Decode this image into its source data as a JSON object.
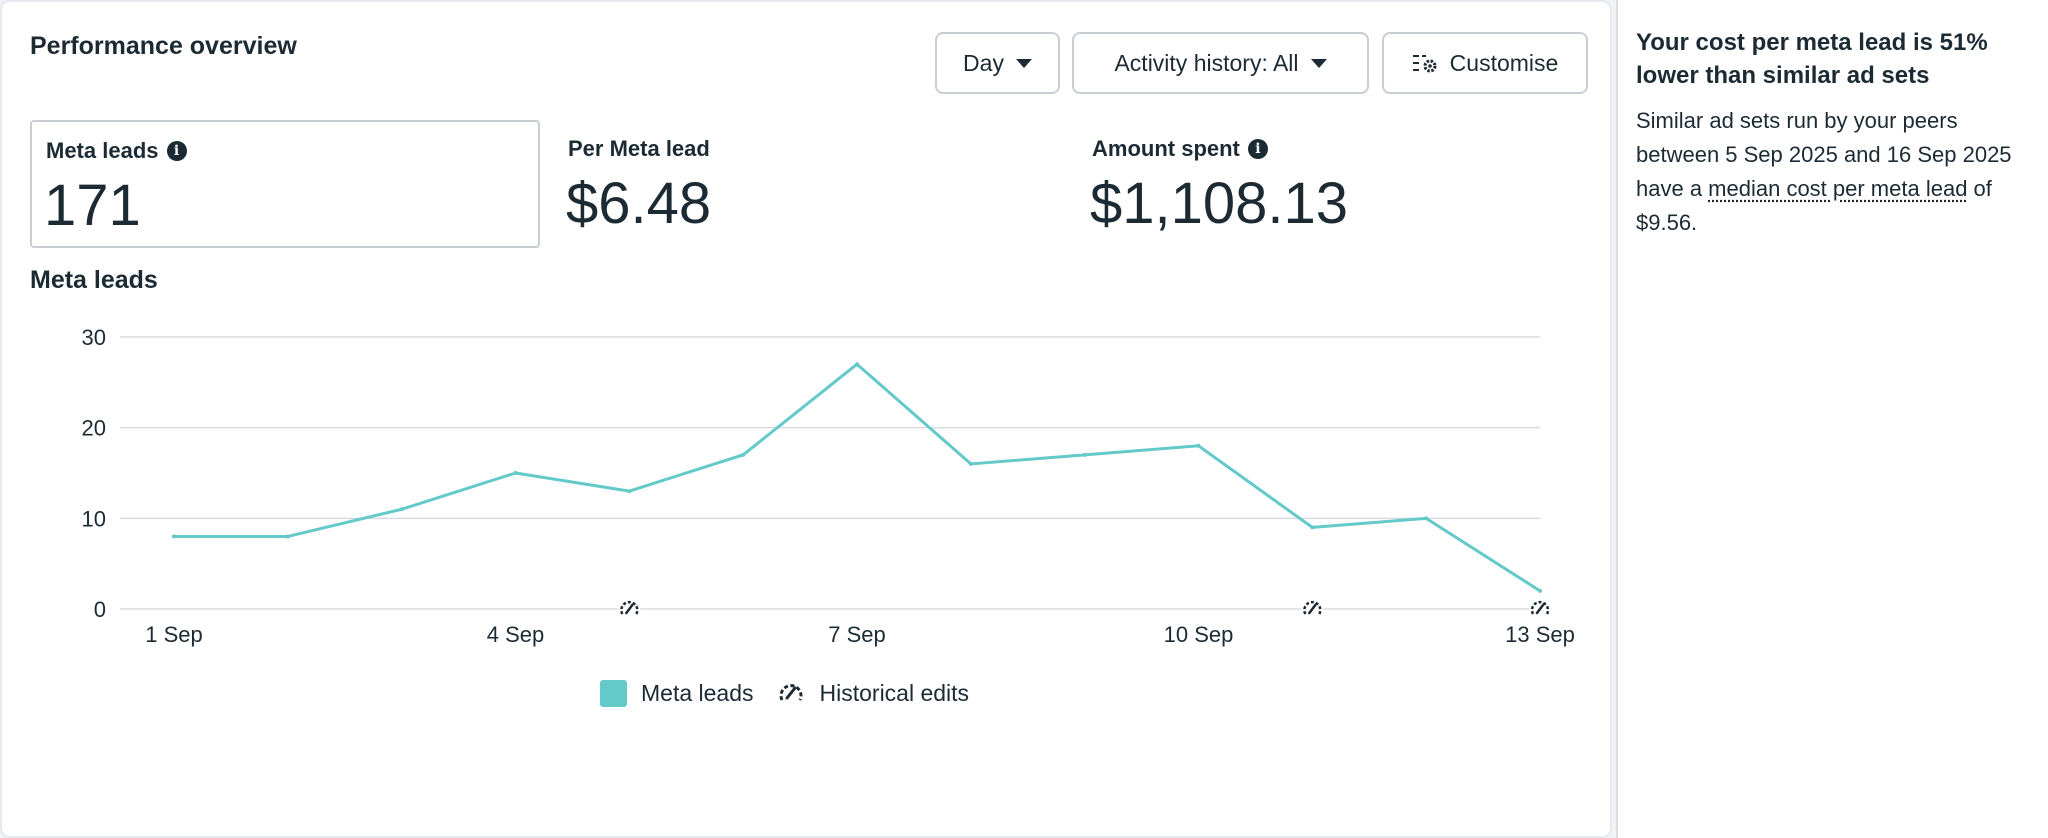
{
  "header": {
    "title": "Performance overview"
  },
  "controls": {
    "day_label": "Day",
    "activity_label": "Activity history: All",
    "customise_label": "Customise"
  },
  "metrics": [
    {
      "label": "Meta leads",
      "value": "171",
      "has_info": true,
      "selected": true
    },
    {
      "label": "Per Meta lead",
      "value": "$6.48",
      "has_info": false,
      "selected": false
    },
    {
      "label": "Amount spent",
      "value": "$1,108.13",
      "has_info": true,
      "selected": false
    }
  ],
  "chart_title": "Meta leads",
  "chart_data": {
    "type": "line",
    "x": [
      "1 Sep",
      "2 Sep",
      "3 Sep",
      "4 Sep",
      "5 Sep",
      "6 Sep",
      "7 Sep",
      "8 Sep",
      "9 Sep",
      "10 Sep",
      "11 Sep",
      "12 Sep",
      "13 Sep"
    ],
    "x_tick_labels": [
      "1 Sep",
      "4 Sep",
      "7 Sep",
      "10 Sep",
      "13 Sep"
    ],
    "series": [
      {
        "name": "Meta leads",
        "values": [
          8,
          8,
          11,
          15,
          13,
          17,
          27,
          16,
          17,
          18,
          9,
          10,
          2
        ]
      }
    ],
    "y_ticks": [
      0,
      10,
      20,
      30
    ],
    "ylim": [
      0,
      30
    ],
    "grid": true,
    "historical_edits_at": [
      "5 Sep",
      "11 Sep",
      "13 Sep"
    ],
    "legend": [
      "Meta leads",
      "Historical edits"
    ],
    "legend_position": "bottom",
    "line_color": "#63c9c9"
  },
  "insight": {
    "title": "Your cost per meta lead is 51% lower than similar ad sets",
    "body_before": "Similar ad sets run by your peers between 5 Sep 2025 and 16 Sep 2025 have a ",
    "link_text": "median cost per meta lead",
    "body_after": " of $9.56."
  },
  "icons": {
    "day_caret": "caret-down-icon",
    "activity_caret": "caret-down-icon",
    "customise": "customise-settings-icon",
    "info": "info-icon",
    "historical_edit": "historical-edit-icon"
  }
}
